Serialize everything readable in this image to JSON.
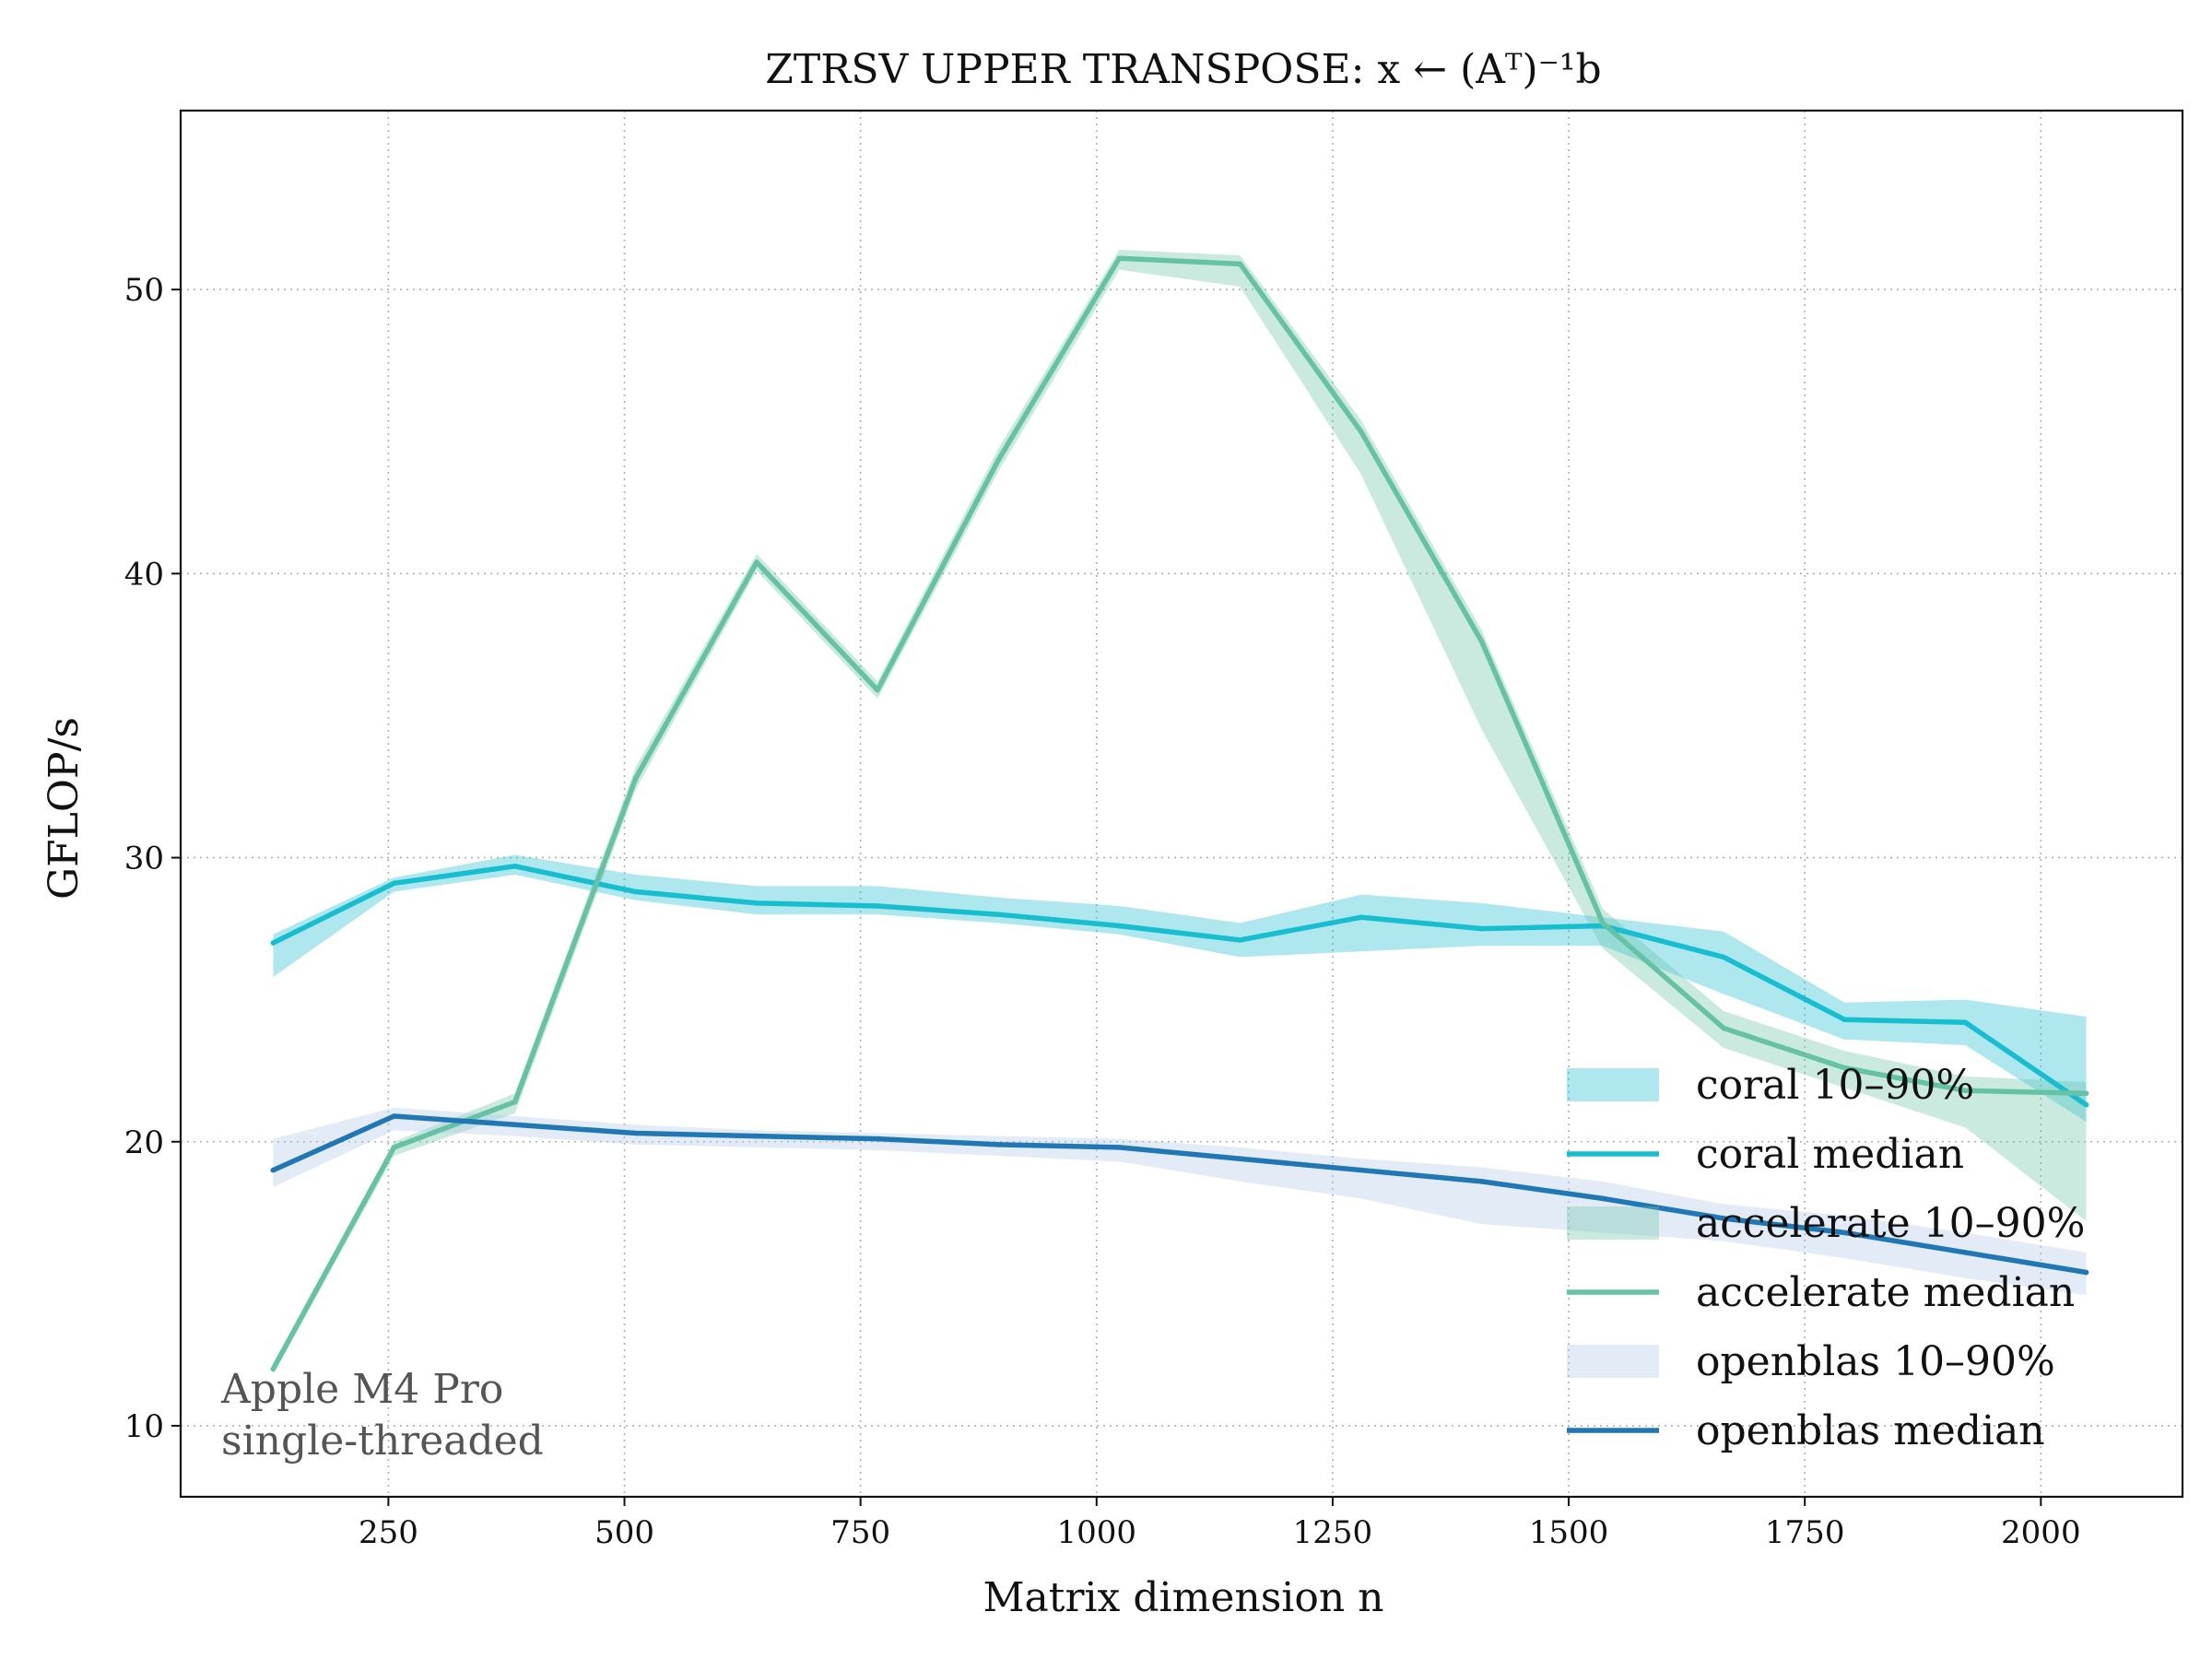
{
  "chart_data": {
    "type": "line",
    "title": "ZTRSV UPPER TRANSPOSE: x ← (Aᵀ)⁻¹b",
    "xlabel": "Matrix dimension n",
    "ylabel": "GFLOP/s",
    "xlim": [
      30,
      2150
    ],
    "ylim": [
      7.5,
      56.3
    ],
    "xticks": [
      250,
      500,
      750,
      1000,
      1250,
      1500,
      1750,
      2000
    ],
    "yticks": [
      10,
      20,
      30,
      40,
      50
    ],
    "grid": true,
    "legend_position": "lower-right",
    "x": [
      128,
      256,
      384,
      512,
      640,
      768,
      896,
      1024,
      1152,
      1280,
      1408,
      1536,
      1664,
      1792,
      1920,
      2048
    ],
    "series": [
      {
        "name": "coral",
        "color": "#17becf",
        "median": [
          27.0,
          29.1,
          29.7,
          28.8,
          28.4,
          28.3,
          28.0,
          27.6,
          27.1,
          27.9,
          27.5,
          27.6,
          26.5,
          24.3,
          24.2,
          21.3
        ],
        "p10": [
          25.8,
          28.8,
          29.4,
          28.5,
          28.0,
          28.0,
          27.7,
          27.3,
          26.5,
          26.7,
          26.9,
          26.9,
          25.2,
          23.6,
          23.4,
          20.7
        ],
        "p90": [
          27.3,
          29.3,
          30.1,
          29.4,
          29.0,
          29.0,
          28.6,
          28.3,
          27.7,
          28.7,
          28.4,
          27.9,
          27.4,
          24.9,
          25.0,
          24.4
        ],
        "legend_band": "coral 10–90%",
        "legend_median": "coral median"
      },
      {
        "name": "accelerate",
        "color": "#66c2a5",
        "median": [
          12.0,
          19.8,
          21.4,
          32.8,
          40.4,
          35.9,
          44.0,
          51.1,
          50.9,
          45.0,
          37.6,
          27.7,
          24.0,
          22.6,
          21.8,
          21.7
        ],
        "p10": [
          11.8,
          19.5,
          21.0,
          32.4,
          40.1,
          35.6,
          43.6,
          50.7,
          50.1,
          43.5,
          34.5,
          26.8,
          23.3,
          21.9,
          20.5,
          17.2
        ],
        "p90": [
          12.2,
          20.0,
          21.7,
          33.2,
          40.7,
          36.2,
          44.4,
          51.4,
          51.2,
          45.4,
          38.0,
          28.2,
          24.6,
          23.2,
          22.3,
          22.1
        ],
        "legend_band": "accelerate 10–90%",
        "legend_median": "accelerate median"
      },
      {
        "name": "openblas",
        "color": "#1f77b4",
        "band_color": "#aec7e8",
        "median": [
          19.0,
          20.9,
          20.6,
          20.3,
          20.2,
          20.1,
          19.9,
          19.8,
          19.4,
          19.0,
          18.6,
          18.0,
          17.3,
          16.8,
          16.1,
          15.4
        ],
        "p10": [
          18.4,
          20.4,
          20.2,
          19.9,
          19.8,
          19.7,
          19.5,
          19.3,
          18.6,
          18.0,
          17.1,
          16.8,
          16.5,
          15.9,
          15.2,
          14.6
        ],
        "p90": [
          20.1,
          21.2,
          20.9,
          20.6,
          20.4,
          20.3,
          20.2,
          20.1,
          19.8,
          19.4,
          19.1,
          18.6,
          17.8,
          17.4,
          16.8,
          16.1
        ],
        "legend_band": "openblas 10–90%",
        "legend_median": "openblas median"
      }
    ],
    "annotation": [
      "Apple M4 Pro",
      "single-threaded"
    ]
  }
}
